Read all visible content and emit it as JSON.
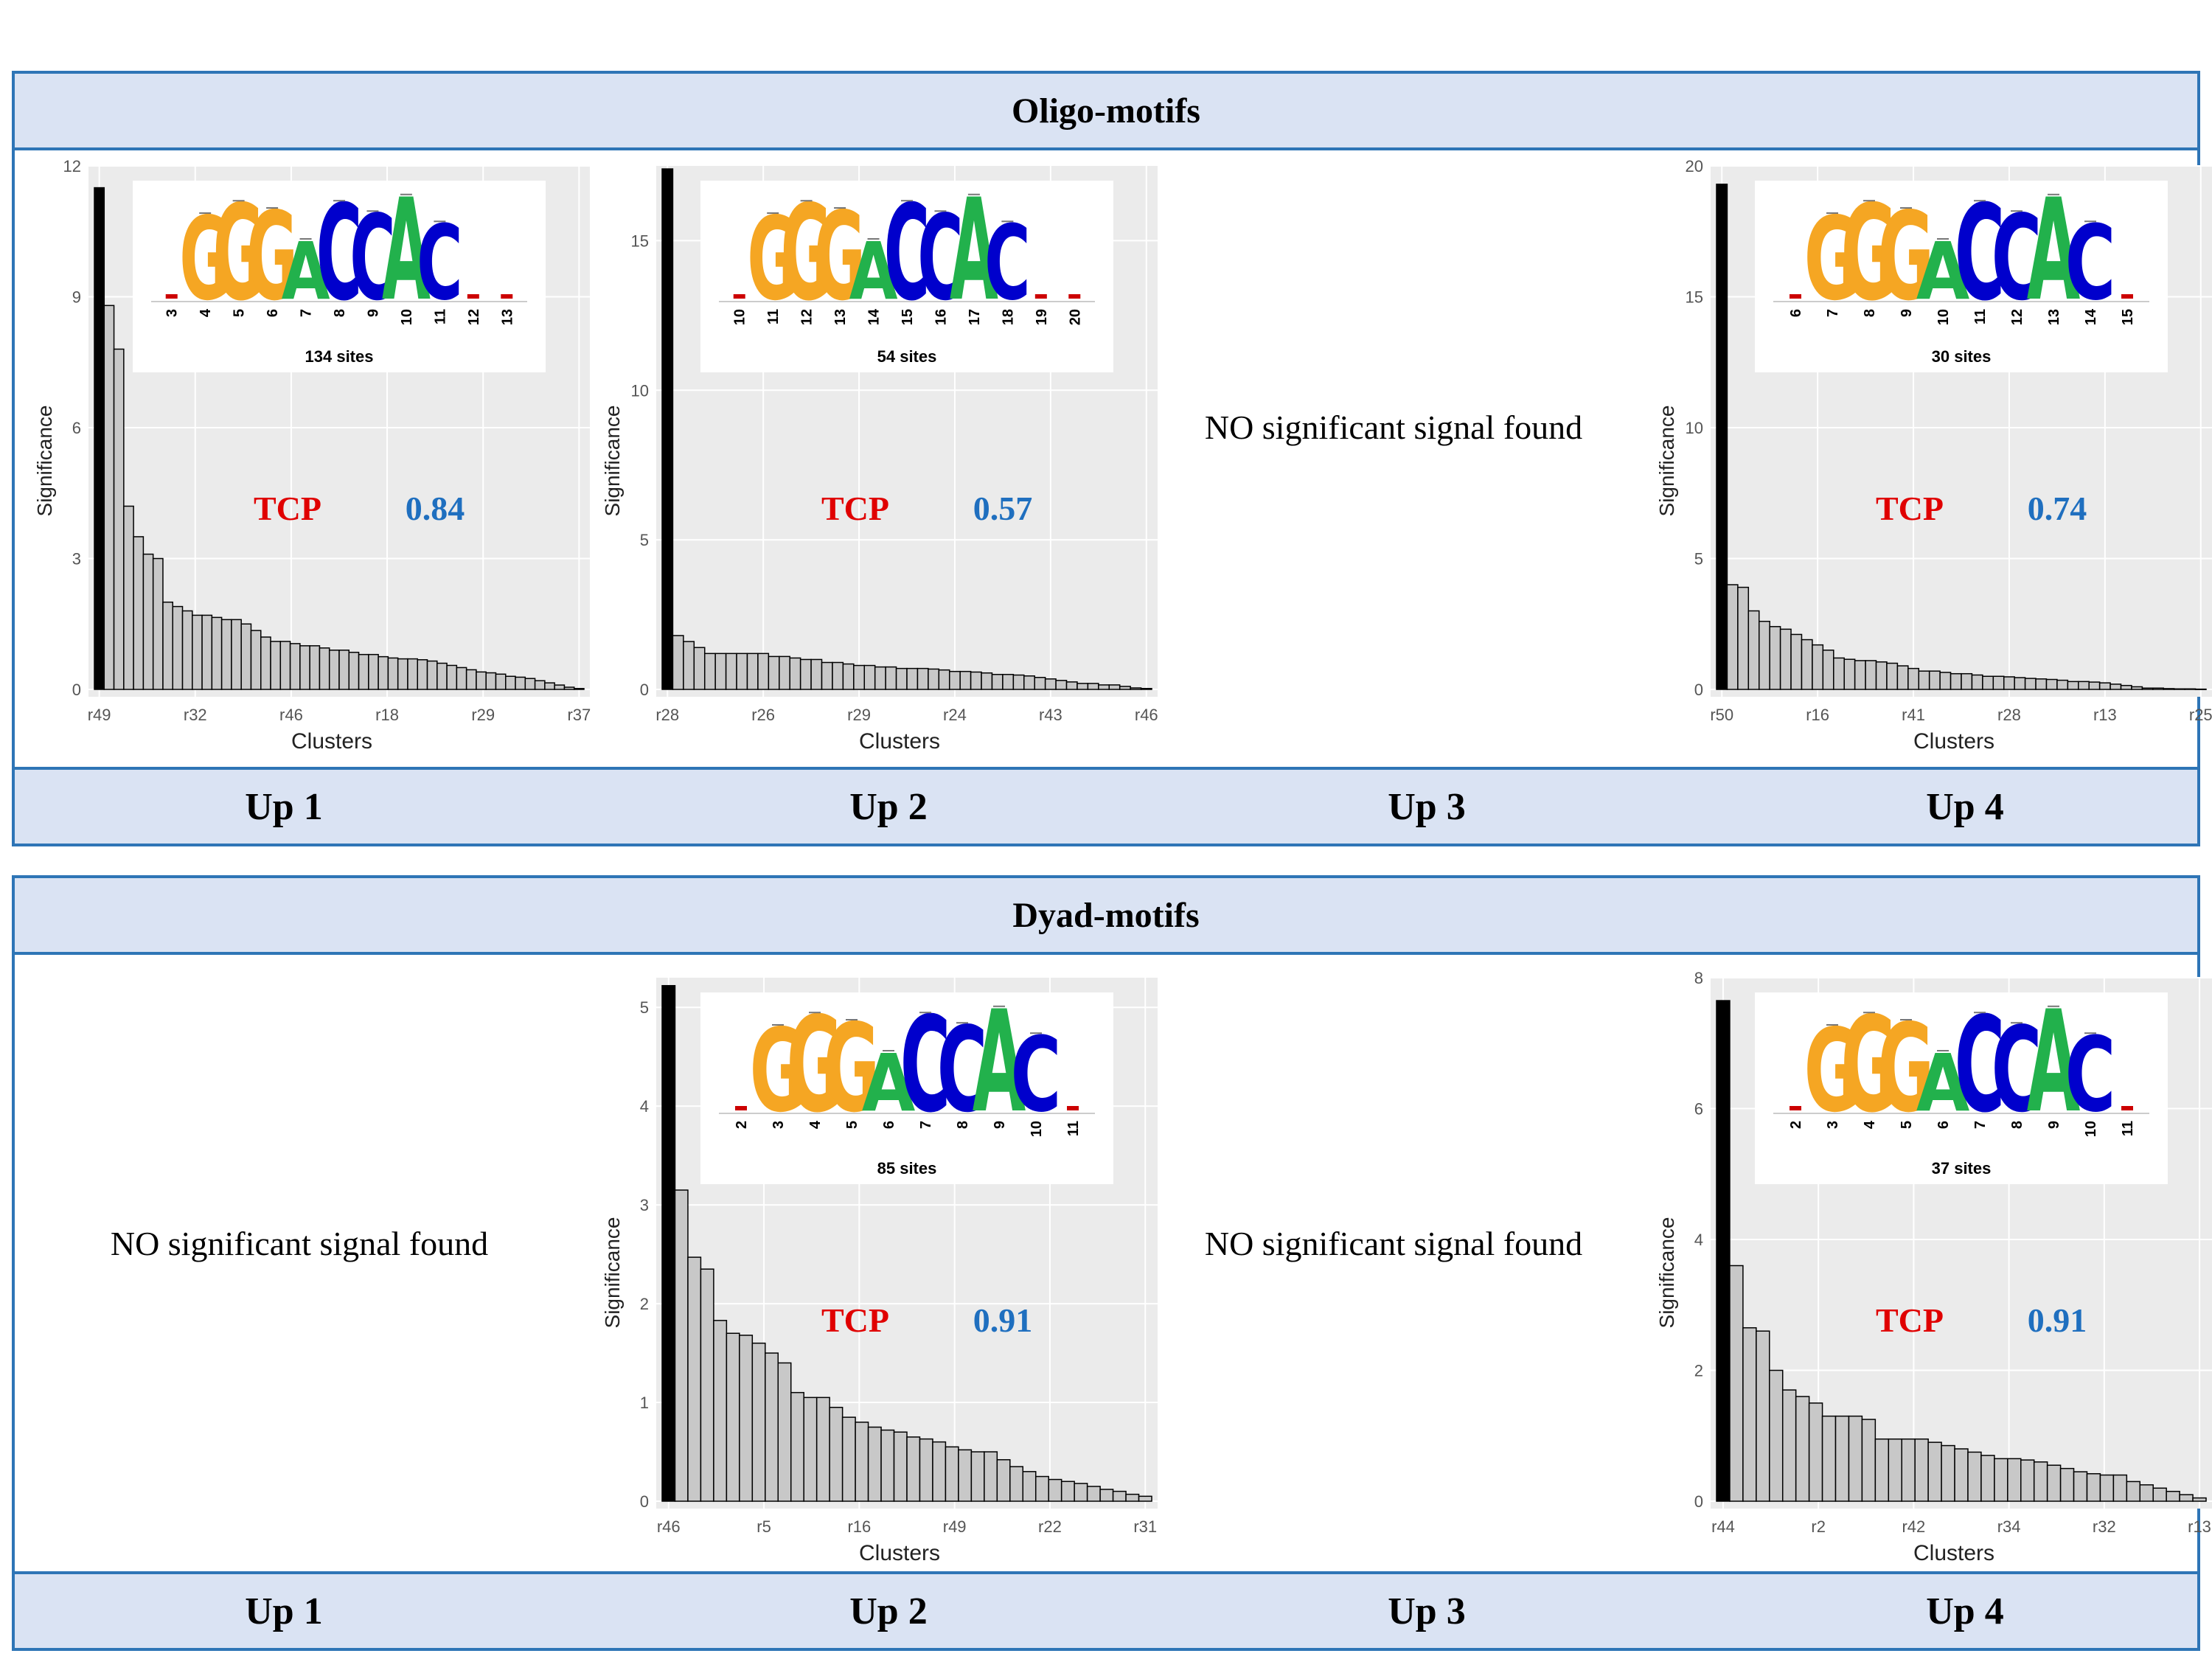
{
  "sections": [
    {
      "title": "Oligo-motifs",
      "columns": [
        "Up 1",
        "Up 2",
        "Up 3",
        "Up 4"
      ]
    },
    {
      "title": "Dyad-motifs",
      "columns": [
        "Up 1",
        "Up 2",
        "Up 3",
        "Up 4"
      ]
    }
  ],
  "no_signal_text": "NO significant signal found",
  "colors": {
    "frame": "#2e75b6",
    "band": "#dae3f3",
    "tcp": "#e00000",
    "score": "#1f6fbf",
    "plot_bg": "#ebebeb",
    "bar_fill": "#c8c8c8",
    "bar_top": "#000000",
    "logo_G": "#f5a623",
    "logo_A": "#22b14c",
    "logo_C": "#0000cc",
    "logo_T": "#cc0000"
  },
  "chart_data": [
    {
      "id": "oligo-up1",
      "type": "bar",
      "ylabel": "Significance",
      "xlabel": "Clusters",
      "ylim": [
        0,
        12
      ],
      "yticks": [
        "0",
        "3",
        "6",
        "9",
        "12"
      ],
      "xticks": [
        "r49",
        "r32",
        "r46",
        "r18",
        "r29",
        "r37"
      ],
      "values": [
        11.5,
        8.8,
        7.8,
        4.2,
        3.5,
        3.1,
        3.0,
        2.0,
        1.9,
        1.8,
        1.7,
        1.7,
        1.65,
        1.6,
        1.6,
        1.5,
        1.35,
        1.2,
        1.1,
        1.1,
        1.05,
        1.0,
        1.0,
        0.95,
        0.9,
        0.9,
        0.85,
        0.8,
        0.8,
        0.75,
        0.72,
        0.7,
        0.7,
        0.68,
        0.65,
        0.6,
        0.55,
        0.5,
        0.45,
        0.4,
        0.38,
        0.35,
        0.3,
        0.28,
        0.25,
        0.2,
        0.15,
        0.1,
        0.05,
        0.02
      ],
      "annotation": {
        "label": "TCP",
        "score": "0.84"
      },
      "logo": {
        "sequence": "GGGACCAC",
        "positions": [
          "3",
          "4",
          "5",
          "6",
          "7",
          "8",
          "9",
          "10",
          "11",
          "12",
          "13"
        ],
        "sites": "134 sites"
      }
    },
    {
      "id": "oligo-up2",
      "type": "bar",
      "ylabel": "Significance",
      "xlabel": "Clusters",
      "ylim": [
        0,
        17.5
      ],
      "yticks": [
        "0",
        "5",
        "10",
        "15"
      ],
      "xticks": [
        "r28",
        "r26",
        "r29",
        "r24",
        "r43",
        "r46"
      ],
      "values": [
        17.4,
        1.8,
        1.6,
        1.4,
        1.2,
        1.2,
        1.2,
        1.2,
        1.2,
        1.2,
        1.1,
        1.1,
        1.05,
        1.0,
        1.0,
        0.9,
        0.9,
        0.85,
        0.8,
        0.8,
        0.75,
        0.75,
        0.7,
        0.7,
        0.7,
        0.68,
        0.65,
        0.6,
        0.6,
        0.58,
        0.55,
        0.5,
        0.5,
        0.48,
        0.45,
        0.4,
        0.35,
        0.3,
        0.25,
        0.2,
        0.2,
        0.15,
        0.15,
        0.1,
        0.05,
        0.03
      ],
      "annotation": {
        "label": "TCP",
        "score": "0.57"
      },
      "logo": {
        "sequence": "GGGACCAC",
        "positions": [
          "10",
          "11",
          "12",
          "13",
          "14",
          "15",
          "16",
          "17",
          "18",
          "19",
          "20"
        ],
        "sites": "54 sites"
      }
    },
    {
      "id": "oligo-up4",
      "type": "bar",
      "ylabel": "Significance",
      "xlabel": "Clusters",
      "ylim": [
        0,
        20
      ],
      "yticks": [
        "0",
        "5",
        "10",
        "15",
        "20"
      ],
      "xticks": [
        "r50",
        "r16",
        "r41",
        "r28",
        "r13",
        "r25"
      ],
      "values": [
        19.3,
        4.0,
        3.9,
        3.0,
        2.6,
        2.4,
        2.3,
        2.1,
        1.9,
        1.7,
        1.5,
        1.2,
        1.15,
        1.1,
        1.1,
        1.05,
        1.0,
        0.9,
        0.8,
        0.7,
        0.7,
        0.65,
        0.6,
        0.6,
        0.55,
        0.5,
        0.5,
        0.48,
        0.45,
        0.42,
        0.4,
        0.38,
        0.35,
        0.3,
        0.3,
        0.28,
        0.25,
        0.2,
        0.15,
        0.1,
        0.05,
        0.05,
        0.03,
        0.02,
        0.02,
        0.01
      ],
      "annotation": {
        "label": "TCP",
        "score": "0.74"
      },
      "logo": {
        "sequence": "GGGACCAC",
        "positions": [
          "6",
          "7",
          "8",
          "9",
          "10",
          "11",
          "12",
          "13",
          "14",
          "15"
        ],
        "sites": "30 sites"
      }
    },
    {
      "id": "dyad-up2",
      "type": "bar",
      "ylabel": "Significance",
      "xlabel": "Clusters",
      "ylim": [
        0,
        5.3
      ],
      "yticks": [
        "0",
        "1",
        "2",
        "3",
        "4",
        "5"
      ],
      "xticks": [
        "r46",
        "r5",
        "r16",
        "r49",
        "r22",
        "r31"
      ],
      "values": [
        5.22,
        3.15,
        2.47,
        2.35,
        1.83,
        1.7,
        1.68,
        1.6,
        1.5,
        1.4,
        1.1,
        1.05,
        1.05,
        0.95,
        0.85,
        0.8,
        0.75,
        0.72,
        0.7,
        0.65,
        0.63,
        0.6,
        0.55,
        0.52,
        0.5,
        0.5,
        0.42,
        0.35,
        0.3,
        0.25,
        0.22,
        0.2,
        0.18,
        0.15,
        0.12,
        0.1,
        0.07,
        0.05
      ],
      "annotation": {
        "label": "TCP",
        "score": "0.91"
      },
      "logo": {
        "sequence": "GGGACCAC",
        "positions": [
          "2",
          "3",
          "4",
          "5",
          "6",
          "7",
          "8",
          "9",
          "10",
          "11"
        ],
        "sites": "85 sites"
      }
    },
    {
      "id": "dyad-up4",
      "type": "bar",
      "ylabel": "Significance",
      "xlabel": "Clusters",
      "ylim": [
        0,
        8
      ],
      "yticks": [
        "0",
        "2",
        "4",
        "6",
        "8"
      ],
      "xticks": [
        "r44",
        "r2",
        "r42",
        "r34",
        "r32",
        "r13"
      ],
      "values": [
        7.65,
        3.6,
        2.65,
        2.6,
        2.0,
        1.7,
        1.6,
        1.5,
        1.3,
        1.3,
        1.3,
        1.25,
        0.95,
        0.95,
        0.95,
        0.95,
        0.9,
        0.85,
        0.8,
        0.75,
        0.7,
        0.65,
        0.65,
        0.63,
        0.6,
        0.55,
        0.5,
        0.45,
        0.42,
        0.4,
        0.4,
        0.3,
        0.25,
        0.2,
        0.15,
        0.1,
        0.05
      ],
      "annotation": {
        "label": "TCP",
        "score": "0.91"
      },
      "logo": {
        "sequence": "GGGACCAC",
        "positions": [
          "2",
          "3",
          "4",
          "5",
          "6",
          "7",
          "8",
          "9",
          "10",
          "11"
        ],
        "sites": "37 sites"
      }
    }
  ]
}
